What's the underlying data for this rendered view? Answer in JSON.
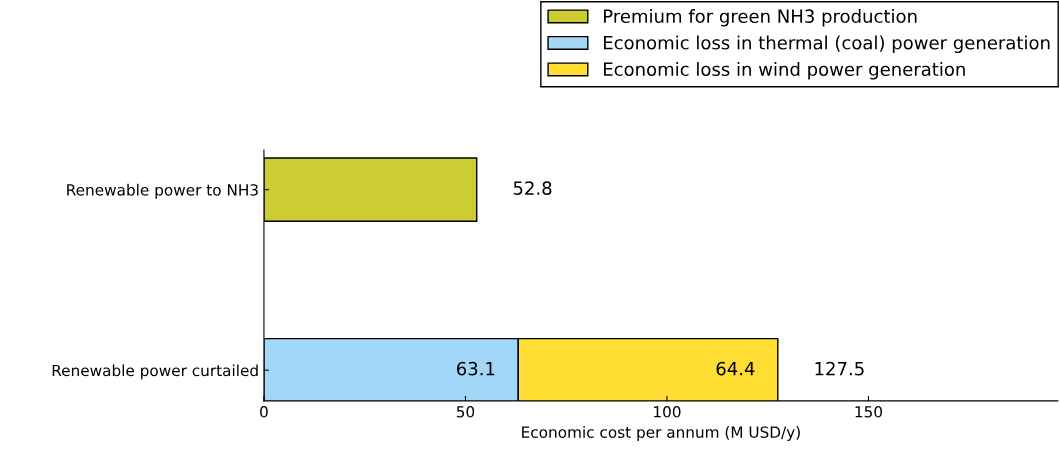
{
  "chart_data": {
    "type": "bar",
    "orientation": "horizontal",
    "stacked": true,
    "categories": [
      "Renewable power to NH3",
      "Renewable power curtailed"
    ],
    "series": [
      {
        "name": "Premium for green NH3 production",
        "color": "#cccc33",
        "values": [
          52.8,
          null
        ]
      },
      {
        "name": "Economic loss in thermal (coal) power generation",
        "color": "#a2d7f7",
        "values": [
          null,
          63.1
        ],
        "value_labels": [
          null,
          "63.1"
        ]
      },
      {
        "name": "Economic loss in wind power generation",
        "color": "#ffdd33",
        "values": [
          null,
          64.4
        ],
        "value_labels": [
          null,
          "64.4"
        ]
      }
    ],
    "totals": [
      "52.8",
      "127.5"
    ],
    "xlabel": "Economic cost per annum (M USD/y)",
    "xlim": [
      0,
      197
    ],
    "xticks": [
      0,
      50,
      100,
      150
    ],
    "legend": "top right",
    "grid": false
  }
}
